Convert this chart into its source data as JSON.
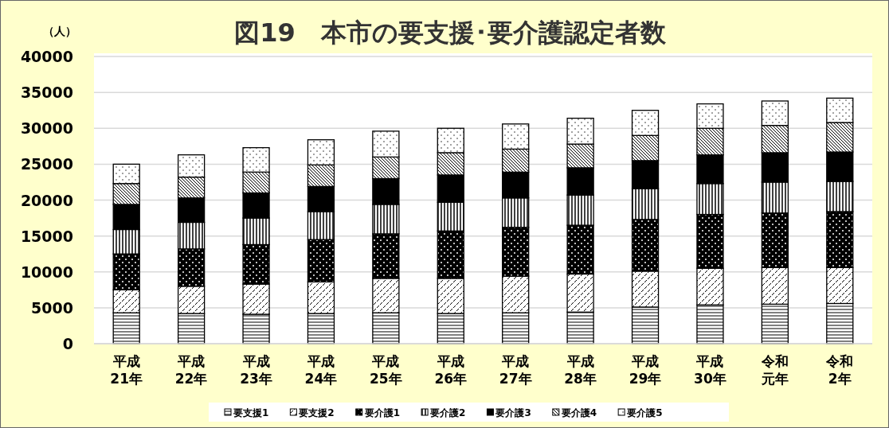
{
  "chart_data": {
    "type": "bar",
    "title": "図19　本市の要支援･要介護認定者数",
    "ylabel": "（人）",
    "categories": [
      "平成21年",
      "平成22年",
      "平成23年",
      "平成24年",
      "平成25年",
      "平成26年",
      "平成27年",
      "平成28年",
      "平成29年",
      "平成30年",
      "令和元年",
      "令和2年"
    ],
    "stacked": true,
    "ylim": [
      0,
      40000
    ],
    "yticks": [
      0,
      5000,
      10000,
      15000,
      20000,
      25000,
      30000,
      35000,
      40000
    ],
    "grid": "y",
    "legend": "bottom",
    "series": [
      {
        "name": "要支援1",
        "color": "#000000",
        "values": [
          4300,
          4200,
          4100,
          4200,
          4300,
          4200,
          4300,
          4400,
          5100,
          5400,
          5500,
          5600
        ]
      },
      {
        "name": "要支援2",
        "color": "#000000",
        "values": [
          3200,
          3800,
          4200,
          4400,
          4800,
          4900,
          5100,
          5300,
          5000,
          5100,
          5100,
          5000
        ]
      },
      {
        "name": "要介護1",
        "color": "#000000",
        "values": [
          5000,
          5200,
          5500,
          5900,
          6200,
          6600,
          6800,
          6800,
          7200,
          7500,
          7600,
          7800
        ]
      },
      {
        "name": "要介護2",
        "color": "#000000",
        "values": [
          3400,
          3700,
          3700,
          3900,
          4100,
          4000,
          4100,
          4200,
          4300,
          4300,
          4300,
          4200
        ]
      },
      {
        "name": "要介護3",
        "color": "#000000",
        "values": [
          3500,
          3400,
          3500,
          3500,
          3600,
          3800,
          3600,
          3800,
          3900,
          4000,
          4100,
          4100
        ]
      },
      {
        "name": "要介護4",
        "color": "#000000",
        "values": [
          2900,
          2900,
          2900,
          3000,
          3000,
          3100,
          3200,
          3300,
          3500,
          3700,
          3800,
          4100
        ]
      },
      {
        "name": "要介護5",
        "color": "#000000",
        "values": [
          2700,
          3100,
          3400,
          3500,
          3600,
          3400,
          3500,
          3600,
          3500,
          3400,
          3400,
          3400
        ]
      }
    ]
  }
}
